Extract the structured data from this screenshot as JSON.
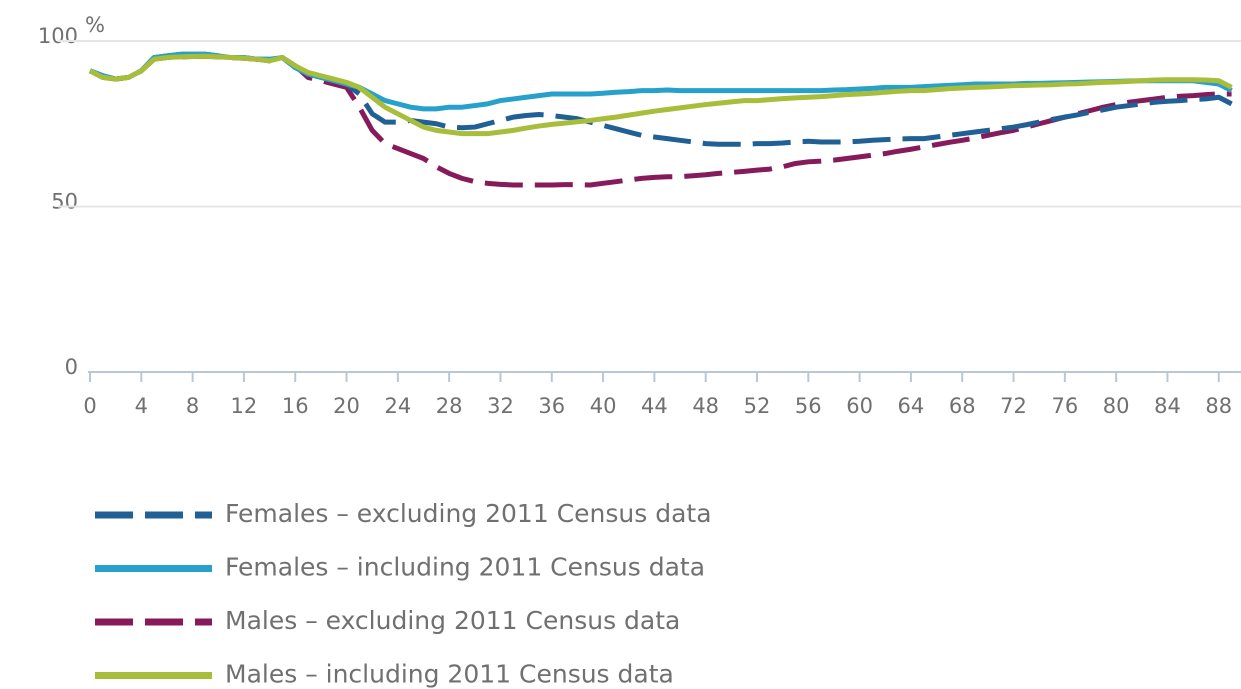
{
  "chart_data": {
    "type": "line",
    "y_label": "%",
    "x": [
      0,
      1,
      2,
      3,
      4,
      5,
      6,
      7,
      8,
      9,
      10,
      11,
      12,
      13,
      14,
      15,
      16,
      17,
      18,
      19,
      20,
      21,
      22,
      23,
      24,
      25,
      26,
      27,
      28,
      29,
      30,
      31,
      32,
      33,
      34,
      35,
      36,
      37,
      38,
      39,
      40,
      41,
      42,
      43,
      44,
      45,
      46,
      47,
      48,
      49,
      50,
      51,
      52,
      53,
      54,
      55,
      56,
      57,
      58,
      59,
      60,
      61,
      62,
      63,
      64,
      65,
      66,
      67,
      68,
      69,
      70,
      71,
      72,
      73,
      74,
      75,
      76,
      77,
      78,
      79,
      80,
      81,
      82,
      83,
      84,
      85,
      86,
      87,
      88,
      89
    ],
    "xlim": [
      0,
      89.5
    ],
    "xticks": [
      0,
      4,
      8,
      12,
      16,
      20,
      24,
      28,
      32,
      36,
      40,
      44,
      48,
      52,
      56,
      60,
      64,
      68,
      72,
      76,
      80,
      84,
      88
    ],
    "ylim": [
      0,
      100
    ],
    "yticks": [
      0,
      50,
      100
    ],
    "grid": true,
    "series": [
      {
        "name": "Females – excluding 2011 Census data",
        "color": "#206095",
        "dashed": true,
        "values": [
          91,
          89.5,
          88.5,
          89,
          91,
          95,
          95.5,
          96,
          96,
          96,
          95.5,
          95,
          95,
          94.5,
          94.5,
          95,
          92,
          90,
          89,
          88,
          87,
          84,
          78,
          75.5,
          75.5,
          76,
          75.5,
          75,
          74,
          73.8,
          74,
          75,
          76,
          77,
          77.5,
          77.8,
          77.5,
          77,
          76.5,
          75.5,
          74.5,
          73.5,
          72.5,
          71.5,
          71,
          70.5,
          70,
          69.5,
          69,
          68.8,
          68.8,
          68.8,
          69,
          69,
          69.2,
          69.5,
          69.7,
          69.5,
          69.5,
          69.5,
          69.7,
          70,
          70.2,
          70.4,
          70.5,
          70.5,
          71,
          71.5,
          72,
          72.5,
          73,
          73.5,
          74,
          74.7,
          75.5,
          76.3,
          77,
          77.7,
          78.5,
          79.2,
          80,
          80.5,
          81,
          81.5,
          81.8,
          82,
          82.3,
          82.5,
          83,
          81
        ]
      },
      {
        "name": "Females – including 2011 Census data",
        "color": "#27a0cc",
        "dashed": false,
        "values": [
          91,
          89.5,
          88.5,
          89,
          91,
          95,
          95.5,
          96,
          96,
          96,
          95.5,
          95,
          95,
          94.5,
          94.5,
          95,
          92,
          90,
          89,
          88,
          87,
          86,
          84,
          82,
          81,
          80,
          79.5,
          79.5,
          80,
          80,
          80.5,
          81,
          82,
          82.5,
          83,
          83.5,
          84,
          84,
          84,
          84,
          84.2,
          84.5,
          84.7,
          85,
          85,
          85.2,
          85,
          85,
          85,
          85,
          85,
          85,
          85,
          85,
          85,
          85,
          85,
          85,
          85.2,
          85.3,
          85.5,
          85.7,
          86,
          86,
          86,
          86.2,
          86.4,
          86.6,
          86.8,
          87,
          87,
          87,
          87,
          87.2,
          87.2,
          87.3,
          87.4,
          87.5,
          87.6,
          87.7,
          87.8,
          87.9,
          88,
          88,
          88,
          88,
          88,
          87.5,
          87,
          85
        ]
      },
      {
        "name": "Males – excluding 2011 Census data",
        "color": "#871a5b",
        "dashed": true,
        "values": [
          91,
          89,
          88.5,
          89,
          91,
          94.5,
          95,
          95.2,
          95.3,
          95.4,
          95.2,
          95,
          94.8,
          94.5,
          94,
          95,
          92.5,
          89,
          88,
          87,
          86,
          80,
          73,
          69,
          67.5,
          66,
          64.5,
          62,
          60,
          58.5,
          57.5,
          57,
          56.7,
          56.5,
          56.5,
          56.5,
          56.5,
          56.6,
          56.6,
          56.5,
          57,
          57.5,
          58,
          58.5,
          58.8,
          59,
          59,
          59.3,
          59.6,
          60,
          60.3,
          60.6,
          61,
          61.3,
          62,
          63,
          63.5,
          63.7,
          64,
          64.5,
          65,
          65.5,
          66,
          66.7,
          67.3,
          68,
          68.7,
          69.4,
          70,
          70.7,
          71.5,
          72.3,
          73,
          74,
          75,
          76,
          77,
          78,
          79,
          80,
          80.8,
          81.5,
          82,
          82.5,
          83,
          83.3,
          83.5,
          83.8,
          84,
          84
        ]
      },
      {
        "name": "Males – including 2011 Census data",
        "color": "#a8bd3a",
        "dashed": false,
        "values": [
          91,
          89,
          88.5,
          89,
          91,
          94.5,
          95,
          95.2,
          95.3,
          95.4,
          95.2,
          95,
          94.8,
          94.5,
          94,
          95,
          92.5,
          90.5,
          89.5,
          88.5,
          87.5,
          86,
          83,
          80,
          78,
          76,
          74,
          73,
          72.5,
          72,
          72,
          72,
          72.5,
          73,
          73.7,
          74.3,
          74.8,
          75.2,
          75.6,
          76,
          76.5,
          77,
          77.6,
          78.2,
          78.8,
          79.3,
          79.8,
          80.3,
          80.8,
          81.2,
          81.6,
          82,
          82,
          82.3,
          82.6,
          82.8,
          83,
          83.2,
          83.5,
          83.8,
          84,
          84.2,
          84.5,
          84.8,
          85,
          85,
          85.3,
          85.6,
          85.8,
          86,
          86.1,
          86.3,
          86.5,
          86.6,
          86.7,
          86.8,
          87,
          87.1,
          87.3,
          87.5,
          87.6,
          87.8,
          88,
          88.2,
          88.3,
          88.3,
          88.3,
          88.2,
          88,
          86
        ]
      }
    ]
  }
}
